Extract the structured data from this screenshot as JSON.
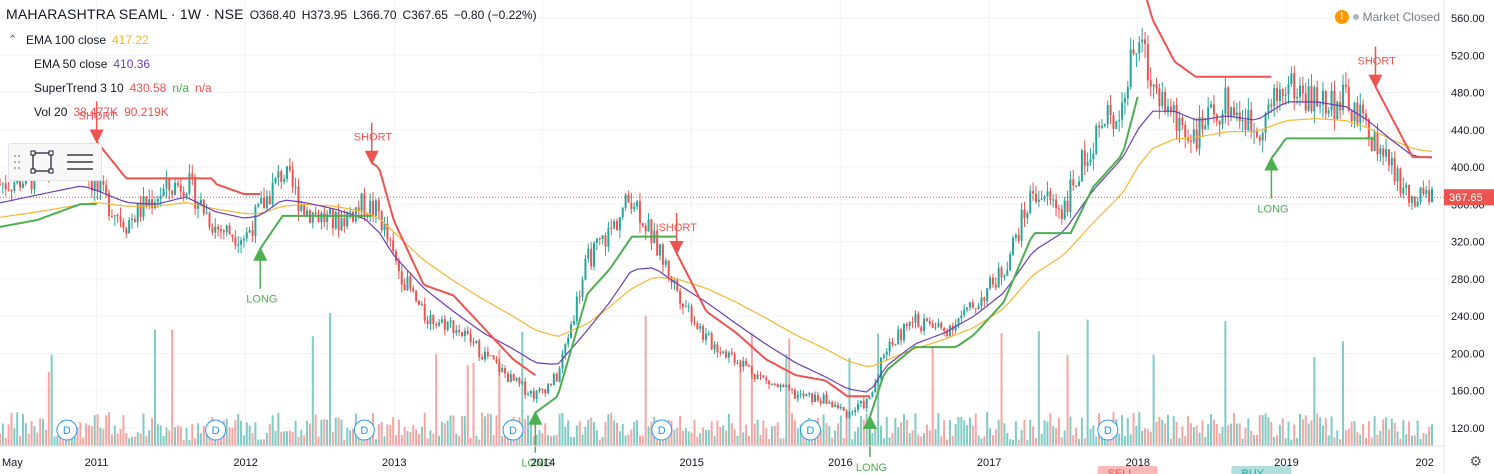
{
  "header": {
    "title": "MAHARASHTRA SEAML · 1W · NSE",
    "open": "O368.40",
    "high": "H373.95",
    "low": "L366.70",
    "close": "C367.65",
    "change": "−0.80 (−0.22%)"
  },
  "status": {
    "label": "Market Closed",
    "icon": "alert-icon"
  },
  "indicators": [
    {
      "name": "EMA 100 close",
      "value": "417.22",
      "color": "#f5b731"
    },
    {
      "name": "EMA 50 close",
      "value": "410.36",
      "color": "#6a3fb5"
    },
    {
      "name": "SuperTrend 3 10",
      "value": "430.58",
      "extra": "n/a",
      "extra2": "n/a",
      "color": "#ef5350"
    },
    {
      "name": "Vol 20",
      "value": "38.477K",
      "extra": "90.219K",
      "color": "#ef5350"
    }
  ],
  "colors": {
    "up": "#26a69a",
    "down": "#ef5350",
    "ema100": "#f5b731",
    "ema50": "#6a3fb5",
    "supertrend_up": "#4caf50",
    "supertrend_down": "#ef5350",
    "vol_up": "#80cbc4",
    "vol_down": "#f4a6a3",
    "price_line": "#ef5350",
    "dividend": "#2196f3"
  },
  "chart_data": {
    "type": "line",
    "x_labels": [
      "May",
      "2011",
      "2012",
      "2013",
      "2014",
      "2015",
      "2016",
      "2017",
      "2018",
      "2019",
      "202"
    ],
    "y_ticks": [
      "560.00",
      "520.00",
      "480.00",
      "440.00",
      "400.00",
      "360.00",
      "320.00",
      "280.00",
      "240.00",
      "200.00",
      "160.00",
      "120.00"
    ],
    "ylim": [
      110,
      570
    ],
    "last_price": "367.65",
    "price_series_x": [
      2010.3,
      2010.6,
      2010.9,
      2011.0,
      2011.2,
      2011.4,
      2011.6,
      2011.8,
      2012.0,
      2012.1,
      2012.25,
      2012.4,
      2012.6,
      2012.8,
      2012.9,
      2013.0,
      2013.2,
      2013.4,
      2013.6,
      2013.8,
      2013.95,
      2014.1,
      2014.3,
      2014.45,
      2014.6,
      2014.75,
      2014.9,
      2015.1,
      2015.3,
      2015.5,
      2015.7,
      2015.9,
      2016.05,
      2016.2,
      2016.3,
      2016.5,
      2016.7,
      2016.9,
      2017.1,
      2017.3,
      2017.5,
      2017.7,
      2017.9,
      2018.0,
      2018.1,
      2018.25,
      2018.4,
      2018.6,
      2018.8,
      2019.0,
      2019.2,
      2019.4,
      2019.55,
      2019.7,
      2019.85,
      2019.95
    ],
    "price_series_y": [
      380,
      390,
      410,
      375,
      340,
      370,
      385,
      335,
      325,
      355,
      395,
      355,
      340,
      360,
      350,
      300,
      240,
      230,
      200,
      170,
      155,
      175,
      300,
      330,
      370,
      320,
      270,
      215,
      195,
      170,
      155,
      150,
      135,
      150,
      205,
      235,
      225,
      250,
      290,
      375,
      355,
      430,
      470,
      540,
      490,
      450,
      435,
      470,
      440,
      490,
      470,
      470,
      440,
      400,
      360,
      368
    ],
    "ema50_y": [
      360,
      370,
      380,
      375,
      362,
      360,
      368,
      352,
      345,
      348,
      365,
      362,
      355,
      345,
      330,
      305,
      270,
      245,
      222,
      205,
      190,
      188,
      225,
      255,
      290,
      292,
      275,
      255,
      232,
      210,
      190,
      175,
      162,
      158,
      185,
      210,
      222,
      240,
      265,
      310,
      330,
      375,
      410,
      440,
      460,
      460,
      450,
      455,
      450,
      470,
      470,
      465,
      450,
      430,
      412,
      410
    ],
    "ema100_y": [
      345,
      352,
      360,
      362,
      358,
      358,
      362,
      355,
      350,
      350,
      358,
      360,
      358,
      352,
      345,
      330,
      300,
      278,
      258,
      240,
      225,
      218,
      232,
      250,
      270,
      282,
      280,
      270,
      255,
      238,
      220,
      205,
      192,
      185,
      192,
      205,
      215,
      228,
      248,
      285,
      305,
      340,
      372,
      400,
      420,
      430,
      432,
      438,
      438,
      450,
      452,
      450,
      442,
      430,
      420,
      417
    ]
  },
  "signals": [
    {
      "label": "SHORT",
      "type": "short"
    },
    {
      "label": "LONG",
      "type": "long"
    },
    {
      "label": "SHORT",
      "type": "short"
    },
    {
      "label": "LONG",
      "type": "long"
    },
    {
      "label": "SHORT",
      "type": "short"
    },
    {
      "label": "LONG",
      "type": "long"
    },
    {
      "label": "SHORT",
      "type": "short"
    },
    {
      "label": "LONG",
      "type": "long"
    },
    {
      "label": "SHORT",
      "type": "short"
    }
  ],
  "dividend_marker": "D",
  "bottom_badges": [
    "SELL",
    "BUY"
  ]
}
